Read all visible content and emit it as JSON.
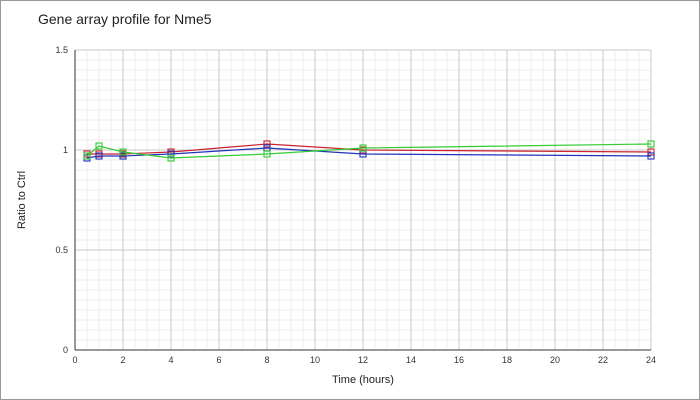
{
  "chart_data": {
    "type": "line",
    "title": "Gene array profile for Nme5",
    "xlabel": "Time (hours)",
    "ylabel": "Ratio to Ctrl",
    "xlim": [
      0,
      24
    ],
    "ylim": [
      0,
      1.5
    ],
    "x_ticks": [
      "0",
      "2",
      "4",
      "6",
      "8",
      "10",
      "12",
      "14",
      "16",
      "18",
      "20",
      "22",
      "24"
    ],
    "y_ticks": [
      "0",
      "0.5",
      "1",
      "1.5"
    ],
    "grid": true,
    "legend": "none",
    "marker": "open-square",
    "series": [
      {
        "color": "#cc2233",
        "points": [
          {
            "x": 0.5,
            "y": 0.98
          },
          {
            "x": 1,
            "y": 0.98
          },
          {
            "x": 2,
            "y": 0.98
          },
          {
            "x": 4,
            "y": 0.99
          },
          {
            "x": 8,
            "y": 1.03
          },
          {
            "x": 12,
            "y": 1.0
          },
          {
            "x": 24,
            "y": 0.99
          }
        ]
      },
      {
        "color": "#2233bb",
        "points": [
          {
            "x": 0.5,
            "y": 0.96
          },
          {
            "x": 1,
            "y": 0.97
          },
          {
            "x": 2,
            "y": 0.97
          },
          {
            "x": 4,
            "y": 0.98
          },
          {
            "x": 8,
            "y": 1.01
          },
          {
            "x": 12,
            "y": 0.98
          },
          {
            "x": 24,
            "y": 0.97
          }
        ]
      },
      {
        "color": "#33cc33",
        "points": [
          {
            "x": 0.5,
            "y": 0.97
          },
          {
            "x": 1,
            "y": 1.02
          },
          {
            "x": 2,
            "y": 0.99
          },
          {
            "x": 4,
            "y": 0.96
          },
          {
            "x": 8,
            "y": 0.98
          },
          {
            "x": 12,
            "y": 1.01
          },
          {
            "x": 24,
            "y": 1.03
          }
        ]
      }
    ]
  }
}
